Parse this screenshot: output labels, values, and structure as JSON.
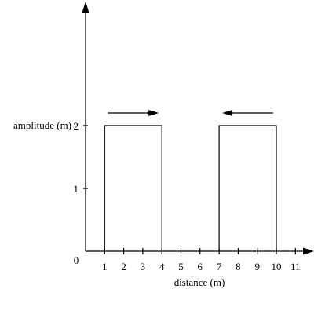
{
  "diagram": {
    "x_axis_label": "distance (m)",
    "y_axis_label": "amplitude (m)",
    "origin_label": "0",
    "x_ticks": [
      1,
      2,
      3,
      4,
      5,
      6,
      7,
      8,
      9,
      10,
      11
    ],
    "x_tick_labels": [
      "1",
      "2",
      "3",
      "4",
      "5",
      "6",
      "7",
      "8",
      "9",
      "10",
      "11"
    ],
    "y_ticks": [
      1,
      2
    ],
    "y_tick_labels": [
      "1",
      "2"
    ],
    "pulses": [
      {
        "x_start": 1,
        "x_end": 4,
        "amplitude": 2,
        "direction": "right"
      },
      {
        "x_start": 7,
        "x_end": 10,
        "amplitude": 2,
        "direction": "left"
      }
    ]
  }
}
